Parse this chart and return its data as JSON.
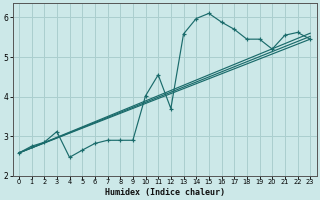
{
  "xlabel": "Humidex (Indice chaleur)",
  "bg_color": "#cce8e8",
  "grid_color": "#aacece",
  "line_color": "#1a6b6b",
  "xlim": [
    -0.5,
    23.5
  ],
  "ylim": [
    2.0,
    6.35
  ],
  "yticks": [
    2,
    3,
    4,
    5,
    6
  ],
  "xticks": [
    0,
    1,
    2,
    3,
    4,
    5,
    6,
    7,
    8,
    9,
    10,
    11,
    12,
    13,
    14,
    15,
    16,
    17,
    18,
    19,
    20,
    21,
    22,
    23
  ],
  "main_series": {
    "x": [
      0,
      1,
      2,
      3,
      4,
      5,
      6,
      7,
      8,
      9,
      10,
      11,
      12,
      13,
      14,
      15,
      16,
      17,
      18,
      19,
      20,
      21,
      22,
      23
    ],
    "y": [
      2.58,
      2.75,
      2.85,
      3.12,
      2.47,
      2.65,
      2.82,
      2.9,
      2.9,
      2.9,
      4.02,
      4.55,
      3.7,
      5.58,
      5.97,
      6.1,
      5.88,
      5.7,
      5.45,
      5.45,
      5.2,
      5.55,
      5.62,
      5.45
    ]
  },
  "trend_lines": [
    {
      "x": [
        0,
        23
      ],
      "y": [
        2.58,
        5.45
      ]
    },
    {
      "x": [
        0,
        23
      ],
      "y": [
        2.58,
        5.52
      ]
    },
    {
      "x": [
        0,
        23
      ],
      "y": [
        2.58,
        5.6
      ]
    }
  ]
}
